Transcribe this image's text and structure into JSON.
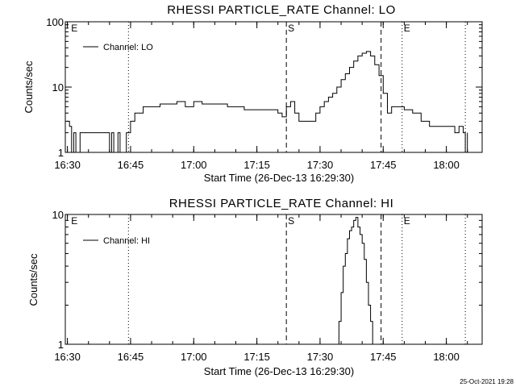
{
  "footer": {
    "timestamp": "25-Oct-2021 19:28"
  },
  "chart_data": [
    {
      "type": "line",
      "title": "RHESSI PARTICLE_RATE Channel: LO",
      "xlabel": "Start Time (26-Dec-13 16:29:30)",
      "ylabel": "Counts/sec",
      "yscale": "log",
      "ylim": [
        1,
        100
      ],
      "xlim": [
        "16:29:30",
        "18:08:30"
      ],
      "xticks": [
        "16:30",
        "16:45",
        "17:00",
        "17:15",
        "17:30",
        "17:45",
        "18:00"
      ],
      "yticks": [
        "1",
        "10",
        "100"
      ],
      "legend": "top-left",
      "series": [
        {
          "name": "Channel: LO",
          "x": [
            "16:30:00",
            "16:30:30",
            "16:31:00",
            "16:31:30",
            "16:32:00",
            "16:33:00",
            "16:34:00",
            "16:36:00",
            "16:38:00",
            "16:40:00",
            "16:40:30",
            "16:41:00",
            "16:42:00",
            "16:42:30",
            "16:43:00",
            "16:43:30",
            "16:44:00",
            "16:44:30",
            "16:45:00",
            "16:46:00",
            "16:47:00",
            "16:48:00",
            "16:50:00",
            "16:52:00",
            "16:54:00",
            "16:56:00",
            "16:58:00",
            "17:00:00",
            "17:02:00",
            "17:04:00",
            "17:06:00",
            "17:08:00",
            "17:10:00",
            "17:12:00",
            "17:14:00",
            "17:16:00",
            "17:18:00",
            "17:20:00",
            "17:21:00",
            "17:22:00",
            "17:23:00",
            "17:24:00",
            "17:25:00",
            "17:26:00",
            "17:27:00",
            "17:28:00",
            "17:29:00",
            "17:30:00",
            "17:31:00",
            "17:32:00",
            "17:33:00",
            "17:34:00",
            "17:35:00",
            "17:36:00",
            "17:37:00",
            "17:38:00",
            "17:39:00",
            "17:40:00",
            "17:41:00",
            "17:42:00",
            "17:43:00",
            "17:44:00",
            "17:45:00",
            "17:46:00",
            "17:47:00",
            "17:48:00",
            "17:50:00",
            "17:52:00",
            "17:54:00",
            "17:56:00",
            "17:58:00",
            "18:00:00",
            "18:02:00",
            "18:03:00",
            "18:04:00",
            "18:04:30",
            "18:05:00"
          ],
          "values": [
            3,
            2.5,
            1,
            2,
            1,
            2,
            2,
            2,
            2,
            1,
            2,
            1,
            2,
            1,
            1,
            1,
            2,
            2,
            3,
            4,
            4,
            5,
            5,
            5.5,
            5.5,
            6,
            5,
            6,
            5.5,
            5.5,
            5.5,
            5,
            5,
            4.5,
            4.5,
            4.5,
            4.5,
            4,
            3.5,
            5,
            6,
            4,
            3,
            3,
            3,
            3,
            4,
            5,
            6,
            7,
            8,
            10,
            13,
            16,
            20,
            25,
            30,
            33,
            35,
            30,
            22,
            15,
            8,
            4,
            5,
            5,
            4.5,
            4,
            3,
            2.5,
            2.5,
            2.5,
            2,
            2.5,
            2,
            1,
            2
          ]
        }
      ],
      "markers": [
        {
          "x": "16:30:30",
          "style": "none",
          "label": "E"
        },
        {
          "x": "16:44:30",
          "style": "dotted",
          "label": ""
        },
        {
          "x": "17:22:00",
          "style": "dashed",
          "label": "S"
        },
        {
          "x": "17:44:30",
          "style": "dashed",
          "label": ""
        },
        {
          "x": "17:49:30",
          "style": "dotted",
          "label": "E"
        },
        {
          "x": "18:04:30",
          "style": "dotted",
          "label": ""
        }
      ]
    },
    {
      "type": "line",
      "title": "RHESSI PARTICLE_RATE Channel: HI",
      "xlabel": "Start Time (26-Dec-13 16:29:30)",
      "ylabel": "Counts/sec",
      "yscale": "log",
      "ylim": [
        1,
        10
      ],
      "xlim": [
        "16:29:30",
        "18:08:30"
      ],
      "xticks": [
        "16:30",
        "16:45",
        "17:00",
        "17:15",
        "17:30",
        "17:45",
        "18:00"
      ],
      "yticks": [
        "1",
        "10"
      ],
      "legend": "top-left",
      "series": [
        {
          "name": "Channel: HI",
          "x": [
            "17:34:00",
            "17:34:30",
            "17:35:00",
            "17:35:30",
            "17:36:00",
            "17:36:30",
            "17:37:00",
            "17:37:30",
            "17:38:00",
            "17:38:30",
            "17:39:00",
            "17:39:30",
            "17:40:00",
            "17:40:30",
            "17:41:00",
            "17:41:30",
            "17:42:00",
            "17:42:30"
          ],
          "values": [
            1,
            1.5,
            2.5,
            4,
            5,
            6.5,
            7.5,
            8,
            9,
            9.5,
            8,
            7,
            6,
            4.5,
            3,
            2,
            1.5,
            1
          ]
        }
      ],
      "markers": [
        {
          "x": "16:30:30",
          "style": "none",
          "label": "E"
        },
        {
          "x": "16:44:30",
          "style": "dotted",
          "label": ""
        },
        {
          "x": "17:22:00",
          "style": "dashed",
          "label": "S"
        },
        {
          "x": "17:44:30",
          "style": "dashed",
          "label": ""
        },
        {
          "x": "17:49:30",
          "style": "dotted",
          "label": "E"
        },
        {
          "x": "18:04:30",
          "style": "dotted",
          "label": ""
        }
      ]
    }
  ]
}
